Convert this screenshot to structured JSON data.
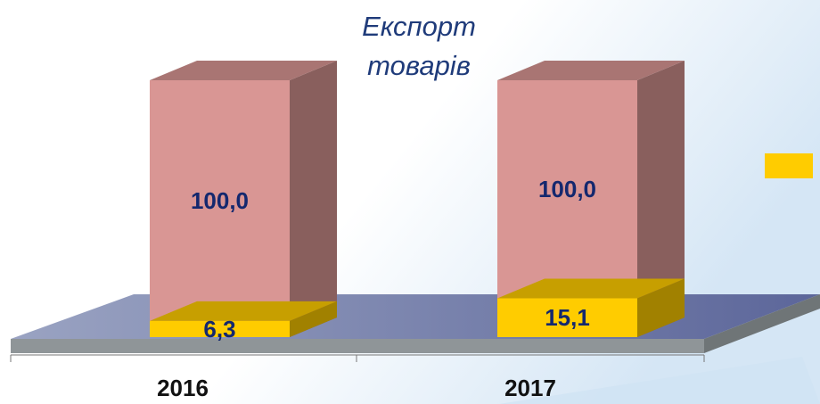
{
  "chart_data": {
    "type": "bar",
    "stacked": false,
    "title": "Експорт товарів",
    "categories": [
      "2016",
      "2017"
    ],
    "series": [
      {
        "color": "#d99694",
        "values": [
          100,
          100
        ],
        "value_labels": [
          "100,0",
          "100,0"
        ]
      },
      {
        "color": "#ffcc00",
        "values": [
          6.3,
          15.1
        ],
        "value_labels": [
          "6,3",
          "15,1"
        ]
      }
    ],
    "ylim": [
      0,
      100
    ],
    "legend": "right"
  }
}
